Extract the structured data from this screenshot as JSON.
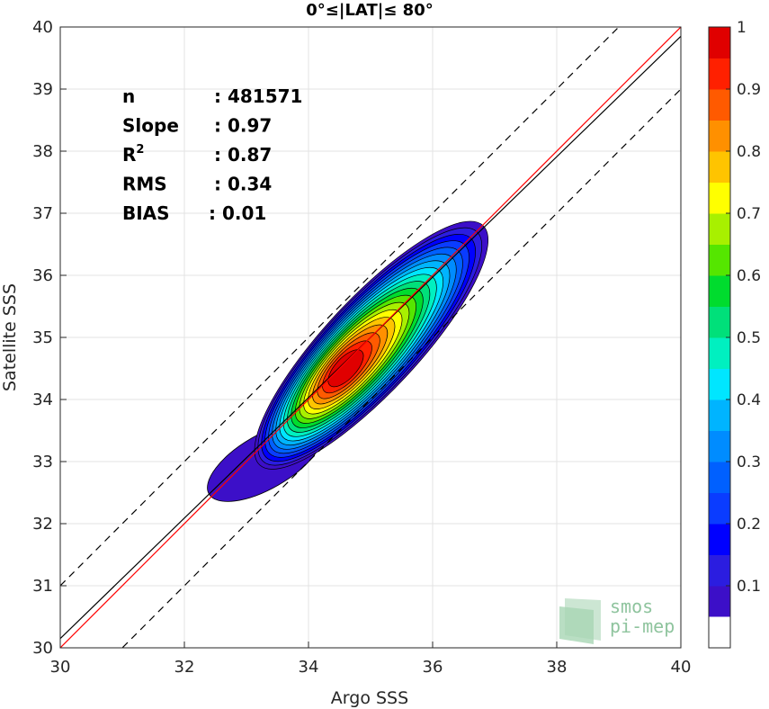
{
  "chart_data": {
    "type": "heatmap",
    "title": "0°≤|LAT|≤ 80°",
    "xlabel": "Argo SSS",
    "ylabel": "Satellite SSS",
    "xlim": [
      30,
      40
    ],
    "ylim": [
      30,
      40
    ],
    "xticks": [
      "30",
      "32",
      "34",
      "36",
      "38",
      "40"
    ],
    "yticks": [
      "30",
      "31",
      "32",
      "33",
      "34",
      "35",
      "36",
      "37",
      "38",
      "39",
      "40"
    ],
    "grid": true,
    "stats": [
      {
        "label": "n",
        "value": ": 481571"
      },
      {
        "label": "Slope",
        "value": ": 0.97"
      },
      {
        "label": "R",
        "sup": "2",
        "value": ": 0.87"
      },
      {
        "label": "RMS",
        "value": ": 0.34"
      },
      {
        "label": "BIAS",
        "value": ": 0.01"
      }
    ],
    "lines": {
      "one_to_one": {
        "x": [
          30,
          40
        ],
        "y": [
          30,
          40
        ],
        "color": "#ff0000"
      },
      "regression": {
        "x": [
          30,
          40
        ],
        "y": [
          30.15,
          39.85
        ],
        "color": "#000000"
      },
      "upper_bound": {
        "x": [
          30,
          40
        ],
        "y": [
          31,
          41
        ],
        "color": "#000000",
        "style": "dashed"
      },
      "lower_bound": {
        "x": [
          30,
          40
        ],
        "y": [
          29,
          39
        ],
        "color": "#000000",
        "style": "dashed"
      }
    },
    "density_peak": {
      "x": 34.65,
      "y": 34.7
    },
    "colorbar": {
      "ticks": [
        "0.1",
        "0.2",
        "0.3",
        "0.4",
        "0.5",
        "0.6",
        "0.7",
        "0.8",
        "0.9",
        "1"
      ],
      "levels": [
        0,
        0.05,
        0.1,
        0.15,
        0.2,
        0.25,
        0.3,
        0.35,
        0.4,
        0.45,
        0.5,
        0.55,
        0.6,
        0.65,
        0.7,
        0.75,
        0.8,
        0.85,
        0.9,
        0.95,
        1.0
      ],
      "colors": [
        "#ffffff",
        "#5a00a8",
        "#3c0fc8",
        "#2b1de0",
        "#0000ff",
        "#0a3cff",
        "#0060ff",
        "#008cff",
        "#00b4ff",
        "#00e6ff",
        "#00f0c0",
        "#00e07a",
        "#00dc2e",
        "#55e600",
        "#a8f000",
        "#ffff00",
        "#ffc400",
        "#ff9000",
        "#ff5a00",
        "#ff2000",
        "#e00000",
        "#800000"
      ]
    }
  },
  "logo": {
    "line1": "smos",
    "line2": "pi-mep"
  }
}
